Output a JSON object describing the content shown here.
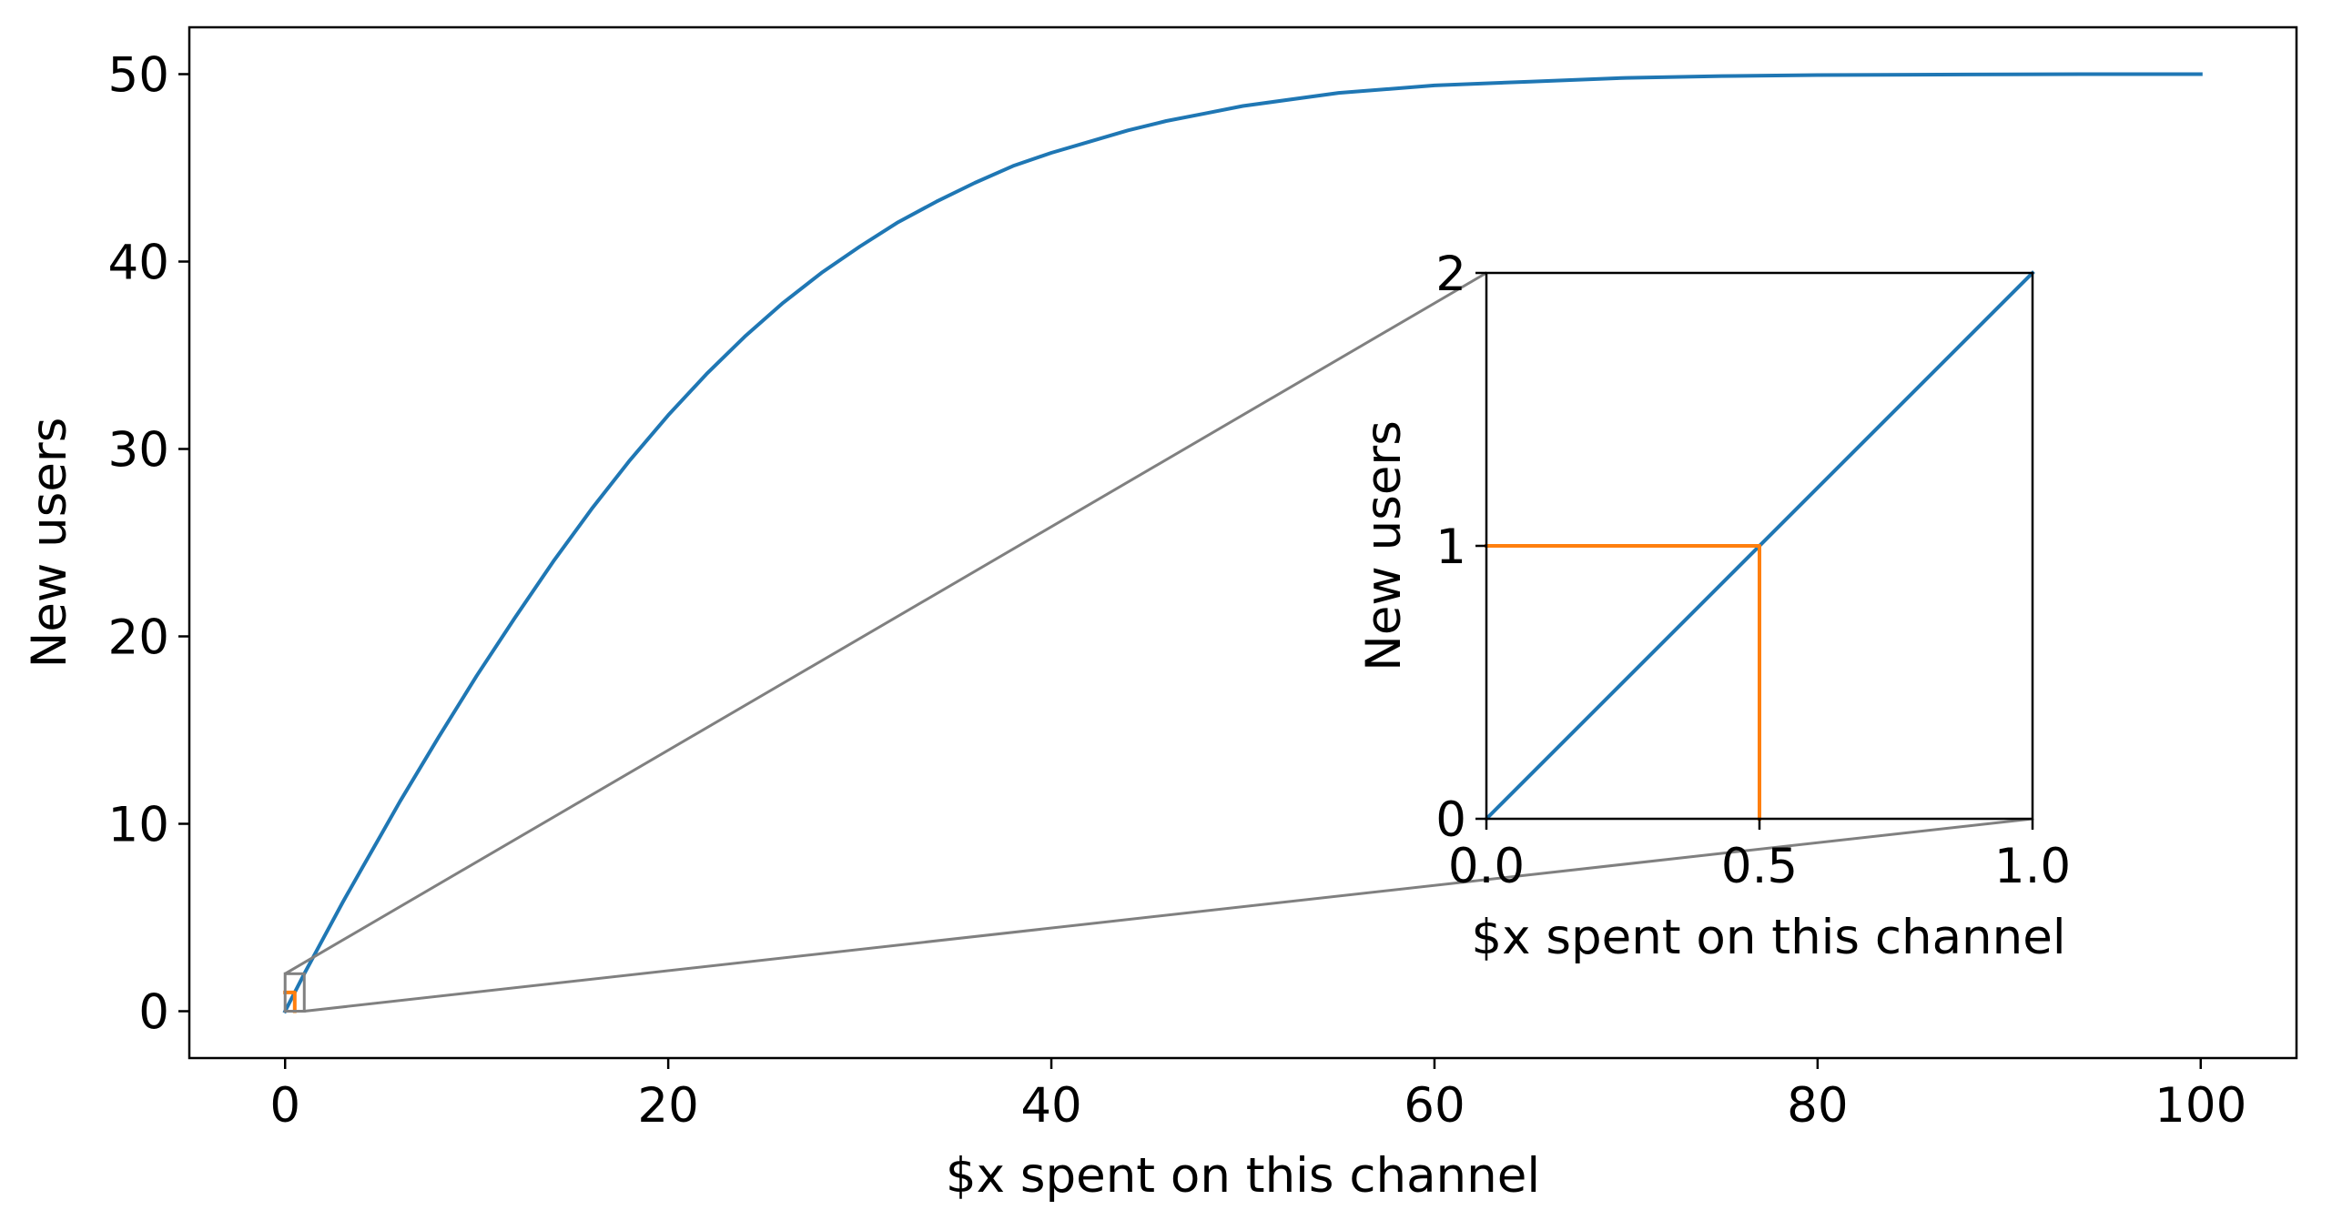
{
  "colors": {
    "series_main": "#1f77b4",
    "series_marker": "#ff7f0e",
    "zoom_indicator": "#808080",
    "axes": "#000000"
  },
  "chart_data": [
    {
      "type": "line",
      "role": "main",
      "xlabel": "$x spent on this channel",
      "ylabel": "New users",
      "xlim": [
        -5,
        105
      ],
      "ylim": [
        -2.5,
        52.5
      ],
      "xticks": [
        0,
        20,
        40,
        60,
        80,
        100
      ],
      "xtick_labels": [
        "0",
        "20",
        "40",
        "60",
        "80",
        "100"
      ],
      "yticks": [
        0,
        10,
        20,
        30,
        40,
        50
      ],
      "ytick_labels": [
        "0",
        "10",
        "20",
        "30",
        "40",
        "50"
      ],
      "grid": false,
      "legend": "none",
      "series": [
        {
          "color": "series_main",
          "x": [
            0,
            1,
            2,
            3,
            4,
            5,
            6,
            8,
            10,
            12,
            14,
            16,
            18,
            20,
            22,
            24,
            26,
            28,
            30,
            32,
            34,
            36,
            38,
            40,
            42,
            44,
            46,
            48,
            50,
            55,
            60,
            65,
            70,
            75,
            80,
            85,
            90,
            95,
            100
          ],
          "y": [
            0,
            2.0,
            3.9,
            5.8,
            7.6,
            9.4,
            11.2,
            14.6,
            17.9,
            21.0,
            24.0,
            26.8,
            29.4,
            31.8,
            34.0,
            36.0,
            37.8,
            39.4,
            40.8,
            42.1,
            43.2,
            44.2,
            45.1,
            45.8,
            46.4,
            47.0,
            47.5,
            47.9,
            48.3,
            49.0,
            49.4,
            49.6,
            49.8,
            49.9,
            49.95,
            49.97,
            49.99,
            50.0,
            50.0
          ]
        },
        {
          "color": "series_marker",
          "x": [
            0,
            0.5,
            0.5
          ],
          "y": [
            1,
            1,
            0
          ]
        }
      ],
      "zoom_box": {
        "xlim": [
          0,
          1
        ],
        "ylim": [
          0,
          2
        ]
      }
    },
    {
      "type": "line",
      "role": "inset",
      "xlabel": "$x spent on this channel",
      "ylabel": "New users",
      "xlim": [
        0,
        1
      ],
      "ylim": [
        0,
        2
      ],
      "xticks": [
        0,
        0.5,
        1
      ],
      "xtick_labels": [
        "0.0",
        "0.5",
        "1.0"
      ],
      "yticks": [
        0,
        1,
        2
      ],
      "ytick_labels": [
        "0",
        "1",
        "2"
      ],
      "grid": false,
      "legend": "none",
      "series": [
        {
          "color": "series_main",
          "x": [
            0,
            1
          ],
          "y": [
            0,
            2
          ]
        },
        {
          "color": "series_marker",
          "x": [
            0,
            0.5,
            0.5
          ],
          "y": [
            1,
            1,
            0
          ]
        }
      ]
    }
  ]
}
